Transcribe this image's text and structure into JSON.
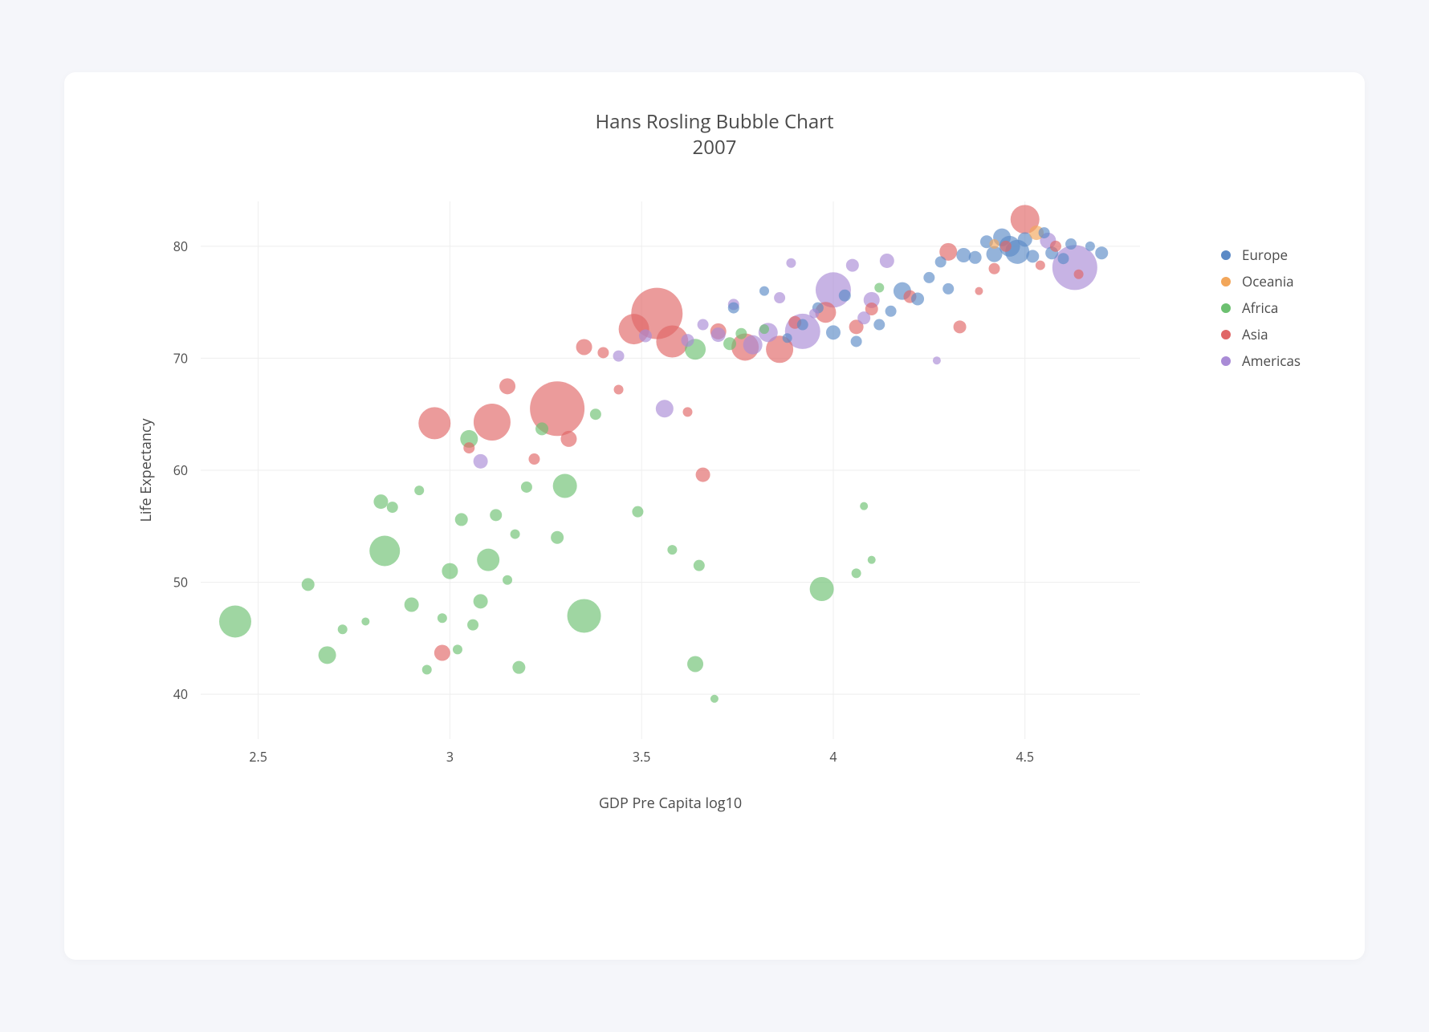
{
  "page": {
    "background_color": "#f5f6fa",
    "card_background": "#ffffff",
    "card_border_radius": 14
  },
  "chart": {
    "type": "bubble",
    "title_line1": "Hans Rosling Bubble Chart",
    "title_line2": "2007",
    "title_fontsize": 24,
    "title_color": "#4a4a4a",
    "xlabel": "GDP Pre Capita log10",
    "ylabel": "Life Expectancy",
    "label_fontsize": 18,
    "tick_fontsize": 16,
    "text_color": "#4a4a4a",
    "grid_color": "#eeeeee",
    "plot_background": "#ffffff",
    "xlim": [
      2.35,
      4.8
    ],
    "ylim": [
      36,
      84
    ],
    "xticks": [
      2.5,
      3.0,
      3.5,
      4.0,
      4.5
    ],
    "xtick_labels": [
      "2.5",
      "3",
      "3.5",
      "4",
      "4.5"
    ],
    "yticks": [
      40,
      50,
      60,
      70,
      80
    ],
    "ytick_labels": [
      "40",
      "50",
      "60",
      "70",
      "80"
    ],
    "bubble_opacity": 0.65,
    "bubble_min_r": 5,
    "bubble_max_r": 34,
    "legend": {
      "position": "right-top",
      "items": [
        {
          "label": "Europe",
          "color": "#5b8ac6"
        },
        {
          "label": "Oceania",
          "color": "#f2a65a"
        },
        {
          "label": "Africa",
          "color": "#6cc070"
        },
        {
          "label": "Asia",
          "color": "#e06666"
        },
        {
          "label": "Americas",
          "color": "#a98bd6"
        }
      ]
    },
    "series": [
      {
        "name": "Africa",
        "color": "#6cc070",
        "points": [
          {
            "x": 2.44,
            "y": 46.5,
            "r": 20
          },
          {
            "x": 2.63,
            "y": 49.8,
            "r": 8
          },
          {
            "x": 2.68,
            "y": 43.5,
            "r": 11
          },
          {
            "x": 2.72,
            "y": 45.8,
            "r": 6
          },
          {
            "x": 2.78,
            "y": 46.5,
            "r": 5
          },
          {
            "x": 2.82,
            "y": 57.2,
            "r": 9
          },
          {
            "x": 2.83,
            "y": 52.8,
            "r": 19
          },
          {
            "x": 2.85,
            "y": 56.7,
            "r": 7
          },
          {
            "x": 2.9,
            "y": 48.0,
            "r": 9
          },
          {
            "x": 2.92,
            "y": 58.2,
            "r": 6
          },
          {
            "x": 2.94,
            "y": 42.2,
            "r": 6
          },
          {
            "x": 2.98,
            "y": 46.8,
            "r": 6
          },
          {
            "x": 3.0,
            "y": 51.0,
            "r": 10
          },
          {
            "x": 3.02,
            "y": 44.0,
            "r": 6
          },
          {
            "x": 3.03,
            "y": 55.6,
            "r": 8
          },
          {
            "x": 3.05,
            "y": 62.8,
            "r": 11
          },
          {
            "x": 3.06,
            "y": 46.2,
            "r": 7
          },
          {
            "x": 3.08,
            "y": 48.3,
            "r": 9
          },
          {
            "x": 3.1,
            "y": 52.0,
            "r": 14
          },
          {
            "x": 3.12,
            "y": 56.0,
            "r": 7.5
          },
          {
            "x": 3.15,
            "y": 50.2,
            "r": 6
          },
          {
            "x": 3.17,
            "y": 54.3,
            "r": 6
          },
          {
            "x": 3.18,
            "y": 42.4,
            "r": 8
          },
          {
            "x": 3.2,
            "y": 58.5,
            "r": 7
          },
          {
            "x": 3.24,
            "y": 63.7,
            "r": 8
          },
          {
            "x": 3.28,
            "y": 54.0,
            "r": 8
          },
          {
            "x": 3.3,
            "y": 58.6,
            "r": 15
          },
          {
            "x": 3.35,
            "y": 47.0,
            "r": 21
          },
          {
            "x": 3.38,
            "y": 65.0,
            "r": 7
          },
          {
            "x": 3.49,
            "y": 56.3,
            "r": 7
          },
          {
            "x": 3.58,
            "y": 52.9,
            "r": 6
          },
          {
            "x": 3.64,
            "y": 42.7,
            "r": 10
          },
          {
            "x": 3.64,
            "y": 70.8,
            "r": 13
          },
          {
            "x": 3.65,
            "y": 51.5,
            "r": 7
          },
          {
            "x": 3.69,
            "y": 39.6,
            "r": 5
          },
          {
            "x": 3.73,
            "y": 71.3,
            "r": 8
          },
          {
            "x": 3.76,
            "y": 72.2,
            "r": 7
          },
          {
            "x": 3.82,
            "y": 72.6,
            "r": 6
          },
          {
            "x": 3.97,
            "y": 49.4,
            "r": 15
          },
          {
            "x": 4.06,
            "y": 50.8,
            "r": 6
          },
          {
            "x": 4.08,
            "y": 56.8,
            "r": 5
          },
          {
            "x": 4.1,
            "y": 52.0,
            "r": 5
          },
          {
            "x": 4.12,
            "y": 76.3,
            "r": 6
          }
        ]
      },
      {
        "name": "Asia",
        "color": "#e06666",
        "points": [
          {
            "x": 2.98,
            "y": 43.7,
            "r": 10
          },
          {
            "x": 2.96,
            "y": 64.2,
            "r": 20
          },
          {
            "x": 3.05,
            "y": 62.0,
            "r": 7
          },
          {
            "x": 3.11,
            "y": 64.3,
            "r": 23
          },
          {
            "x": 3.15,
            "y": 67.5,
            "r": 10
          },
          {
            "x": 3.22,
            "y": 61.0,
            "r": 7
          },
          {
            "x": 3.28,
            "y": 65.5,
            "r": 34
          },
          {
            "x": 3.31,
            "y": 62.8,
            "r": 10
          },
          {
            "x": 3.35,
            "y": 71.0,
            "r": 10
          },
          {
            "x": 3.4,
            "y": 70.5,
            "r": 7
          },
          {
            "x": 3.44,
            "y": 67.2,
            "r": 6
          },
          {
            "x": 3.48,
            "y": 72.6,
            "r": 19
          },
          {
            "x": 3.54,
            "y": 74.0,
            "r": 32
          },
          {
            "x": 3.58,
            "y": 71.5,
            "r": 20
          },
          {
            "x": 3.62,
            "y": 65.2,
            "r": 6
          },
          {
            "x": 3.66,
            "y": 59.6,
            "r": 9
          },
          {
            "x": 3.7,
            "y": 72.4,
            "r": 10
          },
          {
            "x": 3.77,
            "y": 71.0,
            "r": 17
          },
          {
            "x": 3.86,
            "y": 70.8,
            "r": 17
          },
          {
            "x": 3.9,
            "y": 73.2,
            "r": 8
          },
          {
            "x": 3.98,
            "y": 74.1,
            "r": 13
          },
          {
            "x": 4.06,
            "y": 72.8,
            "r": 9
          },
          {
            "x": 4.1,
            "y": 74.4,
            "r": 8
          },
          {
            "x": 4.2,
            "y": 75.5,
            "r": 8
          },
          {
            "x": 4.3,
            "y": 79.5,
            "r": 11
          },
          {
            "x": 4.33,
            "y": 72.8,
            "r": 8
          },
          {
            "x": 4.38,
            "y": 76.0,
            "r": 5
          },
          {
            "x": 4.42,
            "y": 78.0,
            "r": 7
          },
          {
            "x": 4.45,
            "y": 80.0,
            "r": 7
          },
          {
            "x": 4.5,
            "y": 82.4,
            "r": 18
          },
          {
            "x": 4.54,
            "y": 78.3,
            "r": 6
          },
          {
            "x": 4.58,
            "y": 80.0,
            "r": 7
          },
          {
            "x": 4.64,
            "y": 77.5,
            "r": 6
          }
        ]
      },
      {
        "name": "Americas",
        "color": "#a98bd6",
        "points": [
          {
            "x": 3.08,
            "y": 60.8,
            "r": 9
          },
          {
            "x": 3.44,
            "y": 70.2,
            "r": 7
          },
          {
            "x": 3.51,
            "y": 72.0,
            "r": 8
          },
          {
            "x": 3.56,
            "y": 65.5,
            "r": 11
          },
          {
            "x": 3.62,
            "y": 71.6,
            "r": 8
          },
          {
            "x": 3.66,
            "y": 73.0,
            "r": 7
          },
          {
            "x": 3.7,
            "y": 72.1,
            "r": 9
          },
          {
            "x": 3.74,
            "y": 74.8,
            "r": 7
          },
          {
            "x": 3.79,
            "y": 71.2,
            "r": 12
          },
          {
            "x": 3.83,
            "y": 72.3,
            "r": 12
          },
          {
            "x": 3.86,
            "y": 75.4,
            "r": 7
          },
          {
            "x": 3.89,
            "y": 78.5,
            "r": 6
          },
          {
            "x": 3.92,
            "y": 72.4,
            "r": 22
          },
          {
            "x": 3.95,
            "y": 74.0,
            "r": 6
          },
          {
            "x": 4.0,
            "y": 76.1,
            "r": 22
          },
          {
            "x": 4.05,
            "y": 78.3,
            "r": 8
          },
          {
            "x": 4.08,
            "y": 73.6,
            "r": 8
          },
          {
            "x": 4.1,
            "y": 75.2,
            "r": 10
          },
          {
            "x": 4.14,
            "y": 78.7,
            "r": 9
          },
          {
            "x": 4.27,
            "y": 69.8,
            "r": 5
          },
          {
            "x": 4.63,
            "y": 78.1,
            "r": 28
          },
          {
            "x": 4.56,
            "y": 80.5,
            "r": 10
          }
        ]
      },
      {
        "name": "Europe",
        "color": "#5b8ac6",
        "points": [
          {
            "x": 3.74,
            "y": 74.5,
            "r": 7
          },
          {
            "x": 3.82,
            "y": 76.0,
            "r": 6
          },
          {
            "x": 3.88,
            "y": 71.8,
            "r": 6
          },
          {
            "x": 3.92,
            "y": 73.0,
            "r": 7
          },
          {
            "x": 3.96,
            "y": 74.5,
            "r": 7
          },
          {
            "x": 4.0,
            "y": 72.3,
            "r": 9
          },
          {
            "x": 4.03,
            "y": 75.6,
            "r": 7.5
          },
          {
            "x": 4.06,
            "y": 71.5,
            "r": 7
          },
          {
            "x": 4.12,
            "y": 73.0,
            "r": 7
          },
          {
            "x": 4.15,
            "y": 74.2,
            "r": 7
          },
          {
            "x": 4.18,
            "y": 76.0,
            "r": 11
          },
          {
            "x": 4.22,
            "y": 75.3,
            "r": 8
          },
          {
            "x": 4.25,
            "y": 77.2,
            "r": 7
          },
          {
            "x": 4.28,
            "y": 78.6,
            "r": 7
          },
          {
            "x": 4.3,
            "y": 76.2,
            "r": 7
          },
          {
            "x": 4.34,
            "y": 79.2,
            "r": 9
          },
          {
            "x": 4.37,
            "y": 79.0,
            "r": 8
          },
          {
            "x": 4.4,
            "y": 80.4,
            "r": 8
          },
          {
            "x": 4.42,
            "y": 79.3,
            "r": 10
          },
          {
            "x": 4.44,
            "y": 80.8,
            "r": 11
          },
          {
            "x": 4.46,
            "y": 80.0,
            "r": 13
          },
          {
            "x": 4.48,
            "y": 79.5,
            "r": 15
          },
          {
            "x": 4.5,
            "y": 80.6,
            "r": 9
          },
          {
            "x": 4.52,
            "y": 79.1,
            "r": 8
          },
          {
            "x": 4.55,
            "y": 81.2,
            "r": 7
          },
          {
            "x": 4.57,
            "y": 79.4,
            "r": 8
          },
          {
            "x": 4.6,
            "y": 78.9,
            "r": 7
          },
          {
            "x": 4.62,
            "y": 80.2,
            "r": 7
          },
          {
            "x": 4.67,
            "y": 80.0,
            "r": 6
          },
          {
            "x": 4.7,
            "y": 79.4,
            "r": 8
          }
        ]
      },
      {
        "name": "Oceania",
        "color": "#f2a65a",
        "points": [
          {
            "x": 4.42,
            "y": 80.2,
            "r": 6
          },
          {
            "x": 4.53,
            "y": 81.2,
            "r": 9
          }
        ]
      }
    ]
  }
}
